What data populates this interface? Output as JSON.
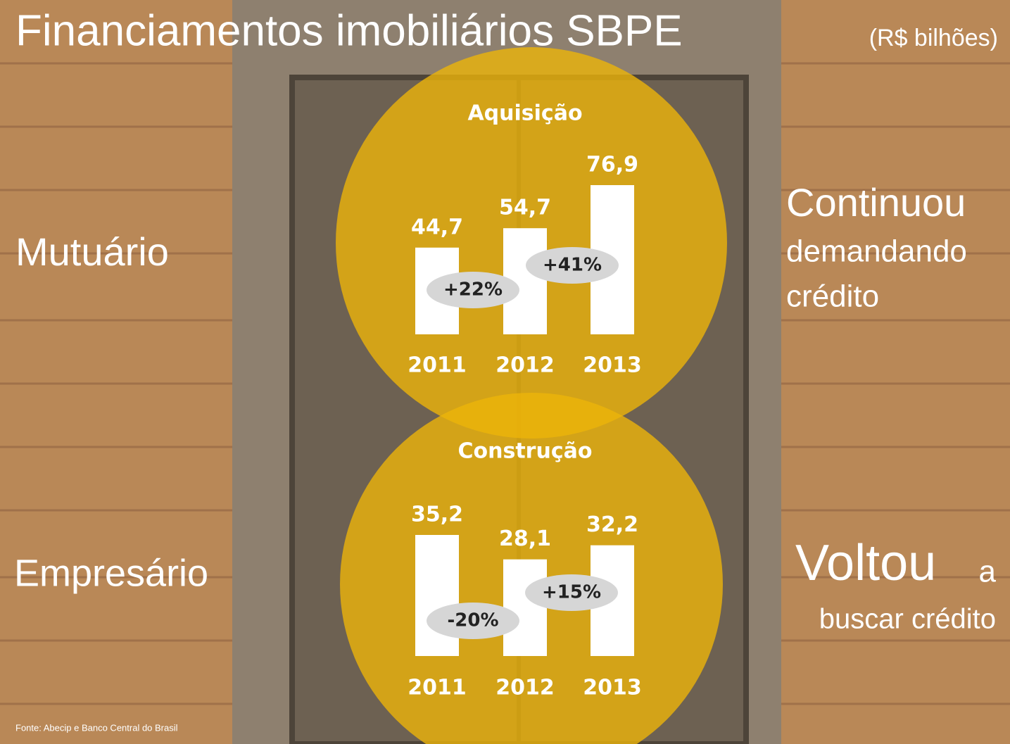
{
  "slide": {
    "title": "Financiamentos imobiliários SBPE",
    "unit": "(R$ bilhões)",
    "left_top": "Mutuário",
    "left_bottom": "Empresário",
    "right_top": [
      "Continuou",
      "demandando",
      "crédito"
    ],
    "right_bottom": [
      "Voltou",
      "a",
      "buscar crédito"
    ],
    "source": "Fonte: Abecip e Banco Central do Brasil"
  },
  "chart_data": [
    {
      "type": "bar",
      "title": "Aquisição",
      "categories": [
        "2011",
        "2012",
        "2013"
      ],
      "values": [
        44.7,
        54.7,
        76.9
      ],
      "value_labels": [
        "44,7",
        "54,7",
        "76,9"
      ],
      "color": "#ffffff",
      "annotations": [
        "+22%",
        "+41%"
      ]
    },
    {
      "type": "bar",
      "title": "Construção",
      "categories": [
        "2011",
        "2012",
        "2013"
      ],
      "values": [
        35.2,
        28.1,
        32.2
      ],
      "value_labels": [
        "35,2",
        "28,1",
        "32,2"
      ],
      "color": "#ffffff",
      "annotations": [
        "-20%",
        "+15%"
      ]
    }
  ]
}
